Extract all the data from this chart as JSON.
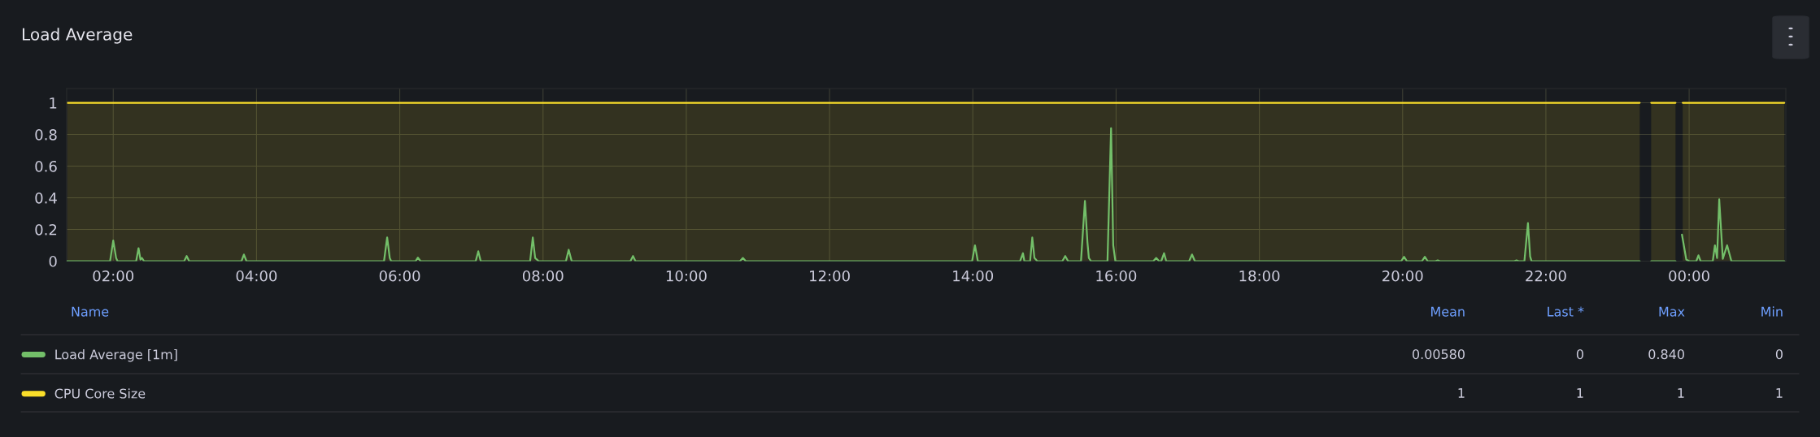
{
  "chart_data": {
    "type": "line",
    "title": "Load Average",
    "xlim": [
      1.35,
      25.35
    ],
    "xticks": [
      {
        "value": 2,
        "label": "02:00"
      },
      {
        "value": 4,
        "label": "04:00"
      },
      {
        "value": 6,
        "label": "06:00"
      },
      {
        "value": 8,
        "label": "08:00"
      },
      {
        "value": 10,
        "label": "10:00"
      },
      {
        "value": 12,
        "label": "12:00"
      },
      {
        "value": 14,
        "label": "14:00"
      },
      {
        "value": 16,
        "label": "16:00"
      },
      {
        "value": 18,
        "label": "18:00"
      },
      {
        "value": 20,
        "label": "20:00"
      },
      {
        "value": 22,
        "label": "22:00"
      },
      {
        "value": 24,
        "label": "00:00"
      }
    ],
    "ylim": [
      0,
      1.09
    ],
    "yticks": [
      0,
      0.2,
      0.4,
      0.6,
      0.8,
      1
    ],
    "grid": true,
    "legend": "bottom",
    "series": [
      {
        "name": "Load Average [1m]",
        "color": "#73bf69",
        "x": [
          1.356,
          1.956,
          2.0,
          2.04,
          2.06,
          2.32,
          2.353,
          2.38,
          2.4,
          2.43,
          2.99,
          3.025,
          3.06,
          3.79,
          3.824,
          3.86,
          5.78,
          5.824,
          5.86,
          5.88,
          6.22,
          6.253,
          6.29,
          7.06,
          7.096,
          7.13,
          7.82,
          7.857,
          7.89,
          7.94,
          8.32,
          8.358,
          8.4,
          9.22,
          9.256,
          9.29,
          10.75,
          10.79,
          10.83,
          13.99,
          14.03,
          14.07,
          14.66,
          14.7,
          14.72,
          14.8,
          14.83,
          14.86,
          14.9,
          15.25,
          15.29,
          15.33,
          15.51,
          15.565,
          15.6,
          15.62,
          15.65,
          15.88,
          15.93,
          15.96,
          15.99,
          16.52,
          16.56,
          16.6,
          16.63,
          16.67,
          16.7,
          17.02,
          17.06,
          17.1,
          19.98,
          20.02,
          20.06,
          20.27,
          20.31,
          20.35,
          20.46,
          20.49,
          20.52,
          21.56,
          21.59,
          21.62,
          21.7,
          21.75,
          21.78,
          21.8,
          23.31,
          23.39,
          23.47,
          23.81,
          23.86,
          23.9,
          23.96,
          24.0,
          24.1,
          24.13,
          24.16,
          24.33,
          24.36,
          24.39,
          24.42,
          24.47,
          24.53,
          24.59,
          25.33
        ],
        "values": [
          0,
          0,
          0.13,
          0.02,
          0,
          0,
          0.082,
          0.01,
          0.02,
          0,
          0,
          0.032,
          0,
          0,
          0.042,
          0,
          0,
          0.15,
          0.02,
          0,
          0,
          0.022,
          0,
          0,
          0.062,
          0,
          0,
          0.15,
          0.02,
          0,
          0,
          0.072,
          0,
          0,
          0.032,
          0,
          0,
          0.02,
          0,
          0,
          0.1,
          0,
          0,
          0.05,
          0,
          0,
          0.15,
          0.02,
          0,
          0,
          0.032,
          0,
          0,
          0.38,
          0.12,
          0.02,
          0,
          0,
          0.84,
          0.1,
          0,
          0,
          0.02,
          0,
          0,
          0.05,
          0,
          0,
          0.042,
          0,
          0,
          0.027,
          0,
          0,
          0.027,
          0,
          0,
          0.005,
          0,
          0,
          0.005,
          0,
          0,
          0.24,
          0.03,
          0,
          0,
          null,
          0,
          0,
          null,
          0.167,
          0.01,
          0,
          0,
          0.037,
          0,
          0,
          0.1,
          0.02,
          0.39,
          0.015,
          0.1,
          0,
          0
        ]
      },
      {
        "name": "CPU Core Size",
        "type": "area",
        "color": "#fade2a",
        "x": [
          1.356,
          23.31,
          23.39,
          23.47,
          23.81,
          23.86,
          23.91,
          25.33
        ],
        "values": [
          1,
          1,
          null,
          1,
          1,
          null,
          1,
          1
        ]
      }
    ],
    "annotations": [
      "Name",
      "Mean",
      "Last *",
      "Max",
      "Min",
      "0.00580",
      "0",
      "0.840",
      "0",
      "1",
      "1",
      "1",
      "1"
    ]
  }
}
